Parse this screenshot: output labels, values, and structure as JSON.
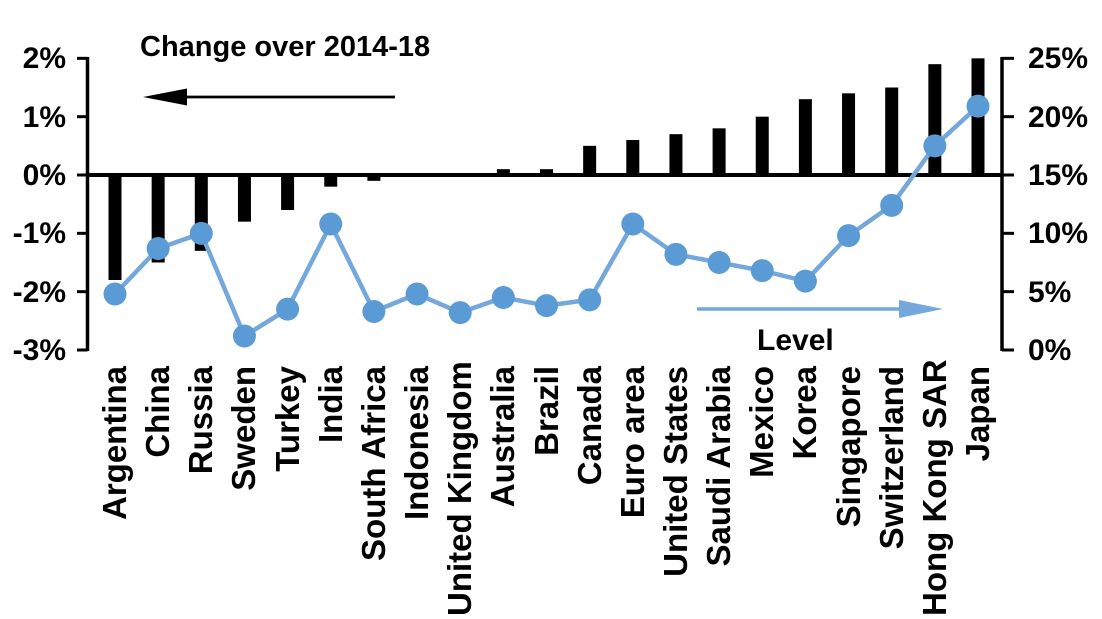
{
  "chart_data": {
    "type": "combo-bar-line",
    "categories": [
      "Argentina",
      "China",
      "Russia",
      "Sweden",
      "Turkey",
      "India",
      "South Africa",
      "Indonesia",
      "United Kingdom",
      "Australia",
      "Brazil",
      "Canada",
      "Euro area",
      "United States",
      "Saudi Arabia",
      "Mexico",
      "Korea",
      "Singapore",
      "Switzerland",
      "Hong Kong SAR",
      "Japan"
    ],
    "series": [
      {
        "name": "Change over 2014-18",
        "type": "bar",
        "axis": "left",
        "values": [
          -1.8,
          -1.5,
          -1.3,
          -0.8,
          -0.6,
          -0.2,
          -0.1,
          0,
          0,
          0.1,
          0.1,
          0.5,
          0.6,
          0.7,
          0.8,
          1.0,
          1.3,
          1.4,
          1.5,
          1.9,
          2.0
        ]
      },
      {
        "name": "Level",
        "type": "line",
        "axis": "right",
        "values": [
          4.8,
          8.7,
          10.0,
          1.2,
          3.5,
          10.8,
          3.3,
          4.8,
          3.2,
          4.5,
          3.8,
          4.3,
          10.8,
          8.2,
          7.5,
          6.8,
          5.9,
          9.8,
          12.4,
          17.5,
          20.9
        ]
      }
    ],
    "left_axis": {
      "ticks": [
        "2%",
        "1%",
        "0%",
        "-1%",
        "-2%",
        "-3%"
      ],
      "values": [
        2,
        1,
        0,
        -1,
        -2,
        -3
      ],
      "range": [
        -3,
        2
      ]
    },
    "right_axis": {
      "ticks": [
        "25%",
        "20%",
        "15%",
        "10%",
        "5%",
        "0%"
      ],
      "values": [
        25,
        20,
        15,
        10,
        5,
        0
      ],
      "range": [
        0,
        25
      ]
    },
    "annotations": {
      "bar_label": "Change over 2014-18",
      "line_label": "Level"
    },
    "legend_position": "in-plot annotations with arrows",
    "grid": false
  },
  "colors": {
    "bar": "#000000",
    "line": "#74A7DB",
    "marker": "#5B9BD5",
    "axis": "#000000",
    "text": "#000000",
    "background": "#FFFFFF"
  }
}
